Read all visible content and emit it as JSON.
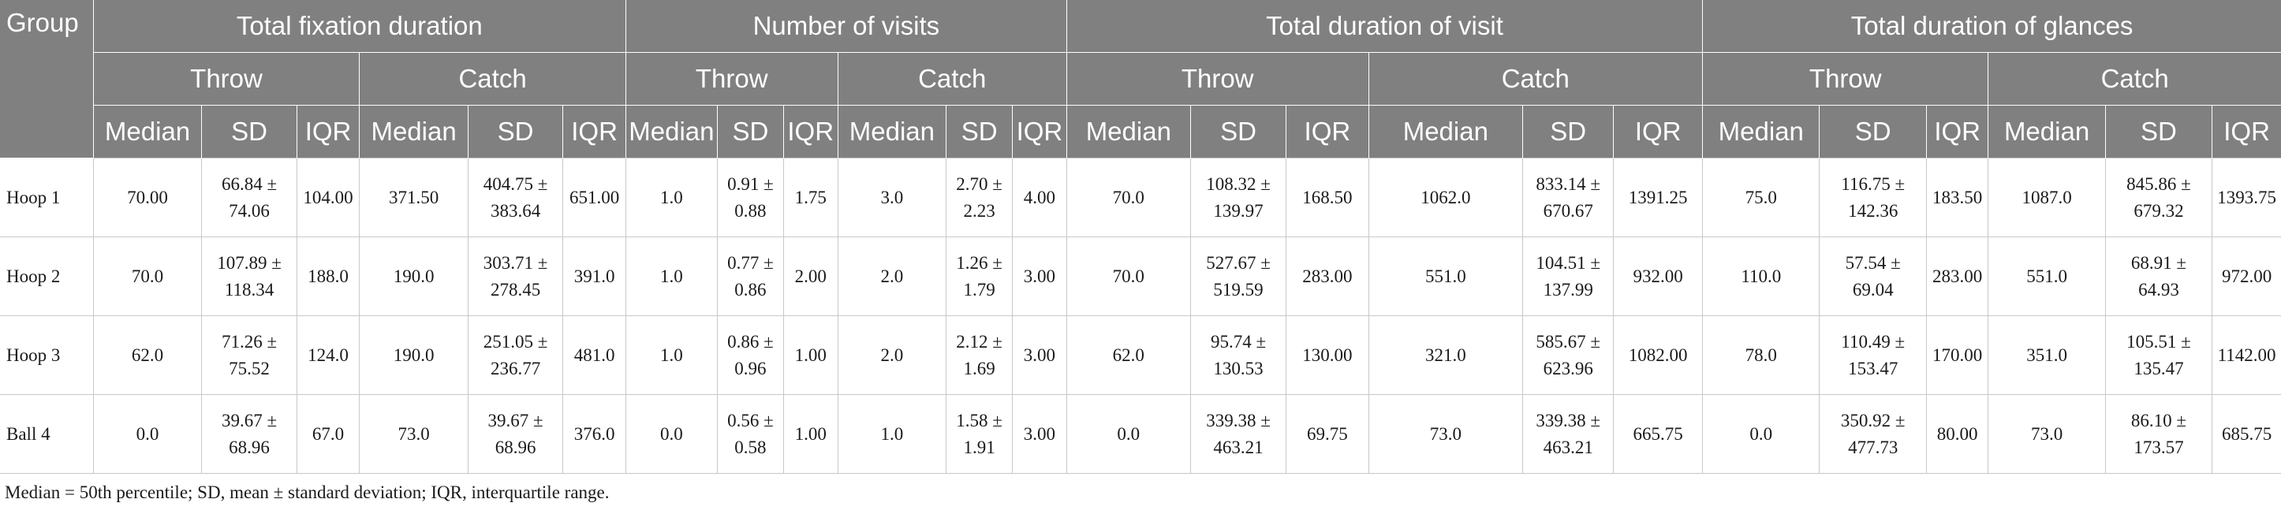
{
  "table": {
    "group_header": "Group",
    "measures": [
      {
        "label": "Total fixation duration"
      },
      {
        "label": "Number of visits"
      },
      {
        "label": "Total duration of visit"
      },
      {
        "label": "Total duration of glances"
      }
    ],
    "conditions": [
      "Throw",
      "Catch"
    ],
    "stats": [
      "Median",
      "SD",
      "IQR"
    ],
    "rows": [
      {
        "group": "Hoop 1",
        "cells": [
          [
            "70.00",
            "66.84 ±",
            "74.06",
            "104.00"
          ],
          [
            "371.50",
            "404.75 ±",
            "383.64",
            "651.00"
          ],
          [
            "1.0",
            "0.91 ±",
            "0.88",
            "1.75"
          ],
          [
            "3.0",
            "2.70 ±",
            "2.23",
            "4.00"
          ],
          [
            "70.0",
            "108.32 ±",
            "139.97",
            "168.50"
          ],
          [
            "1062.0",
            "833.14 ±",
            "670.67",
            "1391.25"
          ],
          [
            "75.0",
            "116.75 ±",
            "142.36",
            "183.50"
          ],
          [
            "1087.0",
            "845.86 ±",
            "679.32",
            "1393.75"
          ]
        ]
      },
      {
        "group": "Hoop 2",
        "cells": [
          [
            "70.0",
            "107.89 ±",
            "118.34",
            "188.0"
          ],
          [
            "190.0",
            "303.71 ±",
            "278.45",
            "391.0"
          ],
          [
            "1.0",
            "0.77 ±",
            "0.86",
            "2.00"
          ],
          [
            "2.0",
            "1.26 ±",
            "1.79",
            "3.00"
          ],
          [
            "70.0",
            "527.67 ±",
            "519.59",
            "283.00"
          ],
          [
            "551.0",
            "104.51 ±",
            "137.99",
            "932.00"
          ],
          [
            "110.0",
            "57.54 ±",
            "69.04",
            "283.00"
          ],
          [
            "551.0",
            "68.91 ±",
            "64.93",
            "972.00"
          ]
        ]
      },
      {
        "group": "Hoop 3",
        "cells": [
          [
            "62.0",
            "71.26 ±",
            "75.52",
            "124.0"
          ],
          [
            "190.0",
            "251.05 ±",
            "236.77",
            "481.0"
          ],
          [
            "1.0",
            "0.86 ±",
            "0.96",
            "1.00"
          ],
          [
            "2.0",
            "2.12 ±",
            "1.69",
            "3.00"
          ],
          [
            "62.0",
            "95.74 ±",
            "130.53",
            "130.00"
          ],
          [
            "321.0",
            "585.67 ±",
            "623.96",
            "1082.00"
          ],
          [
            "78.0",
            "110.49 ±",
            "153.47",
            "170.00"
          ],
          [
            "351.0",
            "105.51 ±",
            "135.47",
            "1142.00"
          ]
        ]
      },
      {
        "group": "Ball 4",
        "cells": [
          [
            "0.0",
            "39.67 ±",
            "68.96",
            "67.0"
          ],
          [
            "73.0",
            "39.67 ±",
            "68.96",
            "376.0"
          ],
          [
            "0.0",
            "0.56 ±",
            "0.58",
            "1.00"
          ],
          [
            "1.0",
            "1.58 ±",
            "1.91",
            "3.00"
          ],
          [
            "0.0",
            "339.38 ±",
            "463.21",
            "69.75"
          ],
          [
            "73.0",
            "339.38 ±",
            "463.21",
            "665.75"
          ],
          [
            "0.0",
            "350.92 ±",
            "477.73",
            "80.00"
          ],
          [
            "73.0",
            "86.10 ±",
            "173.57",
            "685.75"
          ]
        ]
      }
    ],
    "footnote": "Median = 50th percentile; SD, mean ± standard deviation; IQR, interquartile range."
  },
  "colors": {
    "header_bg": "#808080",
    "header_text": "#ffffff",
    "grid": "#c8c8c8"
  }
}
